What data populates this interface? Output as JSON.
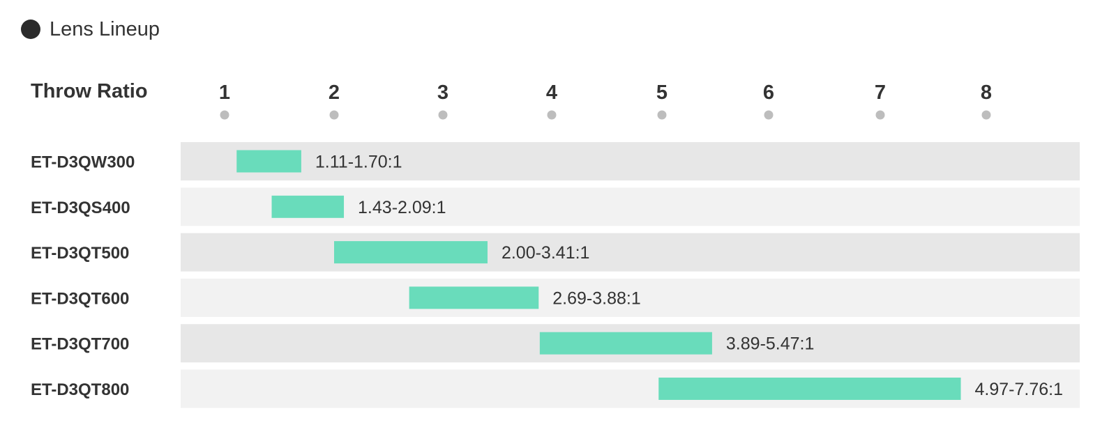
{
  "legend": {
    "label": "Lens Lineup"
  },
  "colors": {
    "bar": "#69dcbb",
    "row_even": "#e7e7e7",
    "row_odd": "#f2f2f2",
    "tick_dot": "#bdbdbd",
    "text": "#333333"
  },
  "chart_data": {
    "type": "bar",
    "orientation": "horizontal-range",
    "xlabel": "Throw Ratio",
    "x_ticks": [
      1,
      2,
      3,
      4,
      5,
      6,
      7,
      8
    ],
    "xlim": [
      0.6,
      9.0
    ],
    "categories": [
      "ET-D3QW300",
      "ET-D3QS400",
      "ET-D3QT500",
      "ET-D3QT600",
      "ET-D3QT700",
      "ET-D3QT800"
    ],
    "ranges": [
      {
        "min": 1.11,
        "max": 1.7,
        "label": "1.11-1.70:1"
      },
      {
        "min": 1.43,
        "max": 2.09,
        "label": "1.43-2.09:1"
      },
      {
        "min": 2.0,
        "max": 3.41,
        "label": "2.00-3.41:1"
      },
      {
        "min": 2.69,
        "max": 3.88,
        "label": "2.69-3.88:1"
      },
      {
        "min": 3.89,
        "max": 5.47,
        "label": "3.89-5.47:1"
      },
      {
        "min": 4.97,
        "max": 7.76,
        "label": "4.97-7.76:1"
      }
    ],
    "grid": false,
    "legend_position": "top-left"
  }
}
